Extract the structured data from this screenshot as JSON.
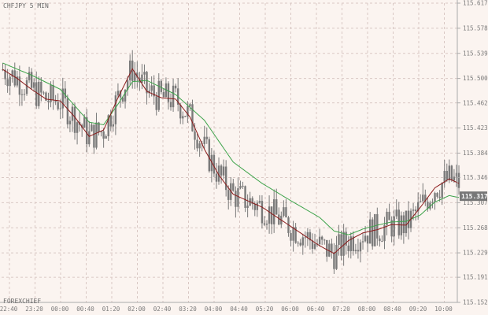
{
  "chart_title": "CHFJPY 5 MIN",
  "watermark": "FOREXCHIEF",
  "colors": {
    "background": "#fbf4f0",
    "grid": "#d9c8c4",
    "frame": "#aaaaaa",
    "candle": "#7a7a7a",
    "ma_fast": "#8b1a1a",
    "ma_slow": "#3da34a",
    "price_tag": "#777777"
  },
  "chart_data": {
    "type": "candlestick",
    "title": "CHFJPY 5 MIN",
    "ylim": [
      115.152,
      115.617
    ],
    "y_ticks": [
      "115.617",
      "115.578",
      "115.539",
      "115.500",
      "115.462",
      "115.423",
      "115.384",
      "115.346",
      "115.307",
      "115.268",
      "115.229",
      "115.191",
      "115.152"
    ],
    "x_tick_labels": [
      "22:40",
      "23:20",
      "00:00",
      "00:40",
      "01:20",
      "02:00",
      "02:40",
      "03:20",
      "04:00",
      "04:40",
      "05:20",
      "06:00",
      "06:40",
      "07:20",
      "08:00",
      "08:40",
      "09:20",
      "10:00"
    ],
    "last_price": "115.317",
    "ma_fast": [
      [
        0,
        115.514
      ],
      [
        6,
        115.5
      ],
      [
        12,
        115.483
      ],
      [
        18,
        115.468
      ],
      [
        24,
        115.465
      ],
      [
        30,
        115.44
      ],
      [
        36,
        115.41
      ],
      [
        42,
        115.42
      ],
      [
        48,
        115.47
      ],
      [
        54,
        115.515
      ],
      [
        60,
        115.48
      ],
      [
        66,
        115.47
      ],
      [
        72,
        115.468
      ],
      [
        78,
        115.44
      ],
      [
        84,
        115.39
      ],
      [
        90,
        115.35
      ],
      [
        96,
        115.32
      ],
      [
        102,
        115.31
      ],
      [
        108,
        115.3
      ],
      [
        114,
        115.285
      ],
      [
        120,
        115.27
      ],
      [
        126,
        115.255
      ],
      [
        132,
        115.24
      ],
      [
        138,
        115.228
      ],
      [
        144,
        115.248
      ],
      [
        150,
        115.26
      ],
      [
        156,
        115.265
      ],
      [
        162,
        115.273
      ],
      [
        168,
        115.272
      ],
      [
        174,
        115.3
      ],
      [
        180,
        115.33
      ],
      [
        186,
        115.344
      ],
      [
        190,
        115.337
      ]
    ],
    "ma_slow": [
      [
        0,
        115.524
      ],
      [
        12,
        115.505
      ],
      [
        24,
        115.483
      ],
      [
        36,
        115.432
      ],
      [
        42,
        115.428
      ],
      [
        48,
        115.46
      ],
      [
        54,
        115.495
      ],
      [
        60,
        115.497
      ],
      [
        72,
        115.475
      ],
      [
        84,
        115.435
      ],
      [
        96,
        115.37
      ],
      [
        108,
        115.337
      ],
      [
        120,
        115.31
      ],
      [
        132,
        115.284
      ],
      [
        138,
        115.263
      ],
      [
        144,
        115.257
      ],
      [
        150,
        115.266
      ],
      [
        156,
        115.272
      ],
      [
        162,
        115.277
      ],
      [
        168,
        115.278
      ],
      [
        174,
        115.288
      ],
      [
        180,
        115.308
      ],
      [
        186,
        115.318
      ],
      [
        190,
        115.315
      ]
    ]
  }
}
